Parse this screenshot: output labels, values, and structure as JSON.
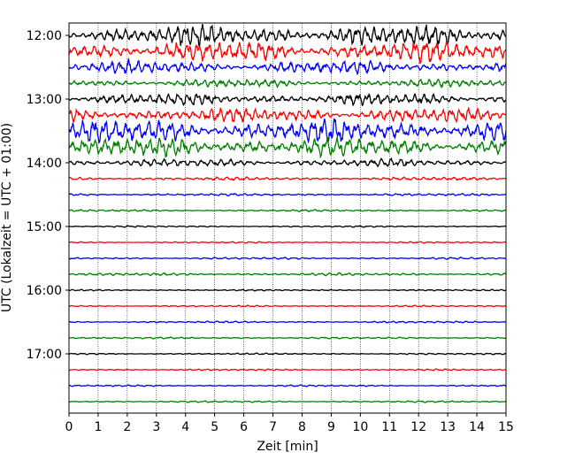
{
  "chart_data": {
    "type": "line",
    "title": "",
    "xlabel": "Zeit  [min]",
    "ylabel": "UTC (Lokalzeit = UTC + 01:00)",
    "xlim": [
      0,
      15
    ],
    "x_ticks": [
      "0",
      "1",
      "2",
      "3",
      "4",
      "5",
      "6",
      "7",
      "8",
      "9",
      "10",
      "11",
      "12",
      "13",
      "14",
      "15"
    ],
    "y_axis": "time of day, inverted (downwards)",
    "y_ticks": [
      "12:00",
      "13:00",
      "14:00",
      "15:00",
      "16:00",
      "17:00"
    ],
    "grid": "vertical dotted lines at each minute",
    "trace_interval_minutes": 15,
    "trace_duration_minutes": 15,
    "color_cycle": [
      "#000000",
      "#ff0000",
      "#0000ff",
      "#008000"
    ],
    "traces": [
      {
        "start": "11:45",
        "color": "#000000",
        "relative_amplitude": 1.6
      },
      {
        "start": "12:00",
        "color": "#ff0000",
        "relative_amplitude": 1.6
      },
      {
        "start": "12:15",
        "color": "#0000ff",
        "relative_amplitude": 1.0
      },
      {
        "start": "12:30",
        "color": "#008000",
        "relative_amplitude": 0.6
      },
      {
        "start": "12:45",
        "color": "#000000",
        "relative_amplitude": 0.9
      },
      {
        "start": "13:00",
        "color": "#ff0000",
        "relative_amplitude": 1.1
      },
      {
        "start": "13:15",
        "color": "#0000ff",
        "relative_amplitude": 1.8
      },
      {
        "start": "13:30",
        "color": "#008000",
        "relative_amplitude": 1.5
      },
      {
        "start": "13:45",
        "color": "#000000",
        "relative_amplitude": 0.6
      },
      {
        "start": "14:00",
        "color": "#ff0000",
        "relative_amplitude": 0.25
      },
      {
        "start": "14:15",
        "color": "#0000ff",
        "relative_amplitude": 0.18
      },
      {
        "start": "14:30",
        "color": "#008000",
        "relative_amplitude": 0.15
      },
      {
        "start": "14:45",
        "color": "#000000",
        "relative_amplitude": 0.12
      },
      {
        "start": "15:00",
        "color": "#ff0000",
        "relative_amplitude": 0.12
      },
      {
        "start": "15:15",
        "color": "#0000ff",
        "relative_amplitude": 0.15
      },
      {
        "start": "15:30",
        "color": "#008000",
        "relative_amplitude": 0.2
      },
      {
        "start": "15:45",
        "color": "#000000",
        "relative_amplitude": 0.12
      },
      {
        "start": "16:00",
        "color": "#ff0000",
        "relative_amplitude": 0.12
      },
      {
        "start": "16:15",
        "color": "#0000ff",
        "relative_amplitude": 0.14
      },
      {
        "start": "16:30",
        "color": "#008000",
        "relative_amplitude": 0.13
      },
      {
        "start": "16:45",
        "color": "#000000",
        "relative_amplitude": 0.12
      },
      {
        "start": "17:00",
        "color": "#ff0000",
        "relative_amplitude": 0.12
      },
      {
        "start": "17:15",
        "color": "#0000ff",
        "relative_amplitude": 0.13
      },
      {
        "start": "17:30",
        "color": "#008000",
        "relative_amplitude": 0.13
      }
    ]
  }
}
